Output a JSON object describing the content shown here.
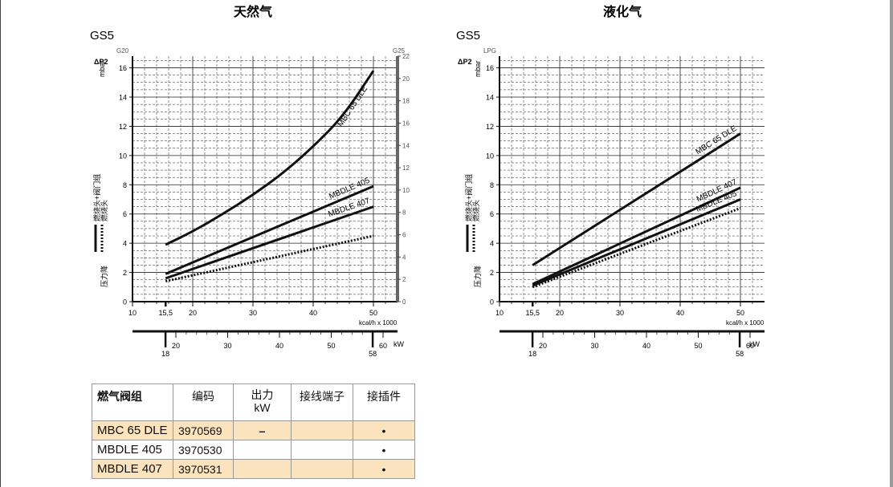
{
  "chart_data": [
    {
      "type": "line",
      "title": "天然气",
      "model_label": "GS5",
      "gas_label_left": "G20",
      "gas_label_right": "G25",
      "ylabel_symbol": "ΔP2",
      "ylabel_unit": "mbar",
      "ylim": [
        0,
        16.8
      ],
      "yticks": [
        0,
        2,
        4,
        6,
        8,
        10,
        12,
        14,
        16
      ],
      "y2lim": [
        0,
        22
      ],
      "y2ticks": [
        0,
        2,
        4,
        6,
        8,
        10,
        12,
        14,
        16,
        18,
        20,
        22
      ],
      "xlim": [
        10,
        54
      ],
      "xticks": [
        "10",
        "15,5",
        "20",
        "30",
        "40",
        "50"
      ],
      "xlabel": "kcal/h x 1000",
      "kw_ticks": [
        "18",
        "20",
        "30",
        "40",
        "50",
        "58",
        "60"
      ],
      "kw_unit": "kW",
      "legend_label_1": "燃烧头+阀门组",
      "legend_label_2": "燃烧头",
      "side_label": "压力降",
      "grid": true,
      "series": [
        {
          "name": "MBC 65 DLE",
          "style": "solid",
          "x": [
            15.5,
            20,
            25,
            30,
            35,
            40,
            45,
            50
          ],
          "y": [
            3.9,
            4.8,
            6.0,
            7.3,
            8.8,
            10.6,
            12.7,
            15.8
          ]
        },
        {
          "name": "MBDLE 405",
          "style": "solid",
          "x": [
            15.5,
            50
          ],
          "y": [
            1.9,
            7.9
          ]
        },
        {
          "name": "MBDLE 407",
          "style": "solid",
          "x": [
            15.5,
            50
          ],
          "y": [
            1.6,
            6.5
          ]
        },
        {
          "name": "",
          "style": "dotted",
          "x": [
            15.5,
            50
          ],
          "y": [
            1.4,
            4.5
          ]
        }
      ]
    },
    {
      "type": "line",
      "title": "液化气",
      "model_label": "GS5",
      "gas_label_left": "LPG",
      "ylabel_symbol": "ΔP2",
      "ylabel_unit": "mbar",
      "ylim": [
        0,
        16.8
      ],
      "yticks": [
        0,
        2,
        4,
        6,
        8,
        10,
        12,
        14,
        16
      ],
      "xlim": [
        10,
        54
      ],
      "xticks": [
        "10",
        "15,5",
        "20",
        "30",
        "40",
        "50"
      ],
      "xlabel": "kcal/h x 1000",
      "kw_ticks": [
        "18",
        "20",
        "30",
        "40",
        "50",
        "58",
        "60"
      ],
      "kw_unit": "kW",
      "legend_label_1": "燃烧头+阀门组",
      "legend_label_2": "燃烧头",
      "side_label": "压力降",
      "grid": true,
      "series": [
        {
          "name": "MBC 65 DLE",
          "style": "solid",
          "x": [
            15.5,
            50
          ],
          "y": [
            2.5,
            11.5
          ]
        },
        {
          "name": "MBDLE 407",
          "style": "solid",
          "x": [
            15.5,
            50
          ],
          "y": [
            1.2,
            7.8
          ]
        },
        {
          "name": "MBDLE 405",
          "style": "solid",
          "x": [
            15.5,
            50
          ],
          "y": [
            1.1,
            7.0
          ]
        },
        {
          "name": "",
          "style": "dotted",
          "x": [
            15.5,
            50
          ],
          "y": [
            1.0,
            6.4
          ]
        }
      ]
    }
  ],
  "table": {
    "headers": [
      "燃气阀组",
      "编码",
      "出力\nkW",
      "接线端子",
      "接插件"
    ],
    "rows": [
      {
        "name": "MBC 65 DLE",
        "code": "3970569",
        "kw": "–",
        "terminal": "",
        "plug": "•"
      },
      {
        "name": "MBDLE 405",
        "code": "3970530",
        "kw": "",
        "terminal": "",
        "plug": "•"
      },
      {
        "name": "MBDLE 407",
        "code": "3970531",
        "kw": "",
        "terminal": "",
        "plug": "•"
      }
    ]
  }
}
